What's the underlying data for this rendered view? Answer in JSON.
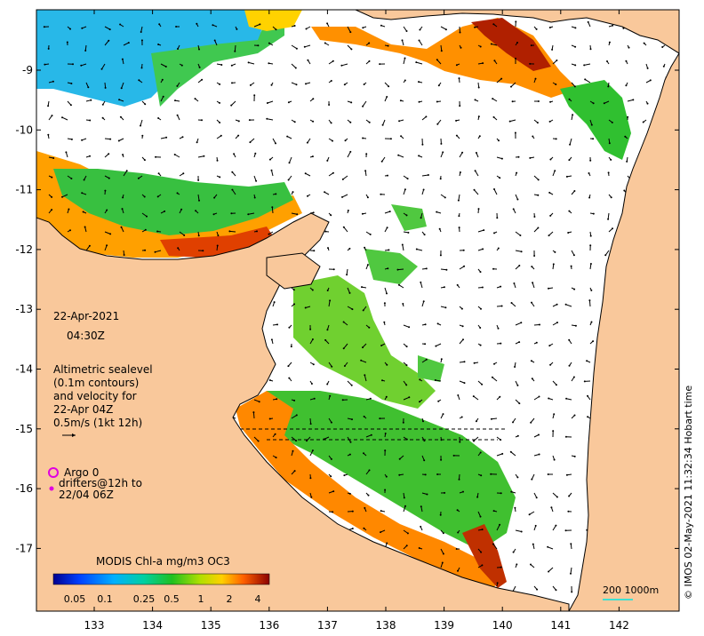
{
  "map": {
    "x_tick_labels": [
      "133",
      "134",
      "135",
      "136",
      "137",
      "138",
      "139",
      "140",
      "141",
      "142"
    ],
    "y_tick_labels": [
      "-9",
      "-10",
      "-11",
      "-12",
      "-13",
      "-14",
      "-15",
      "-16",
      "-17"
    ],
    "date_line": "22-Apr-2021",
    "time_line": "04:30Z",
    "sealevel_lines": [
      "Altimetric sealevel",
      "(0.1m contours)",
      "and velocity for",
      "22-Apr 04Z",
      "0.5m/s (1kt 12h)"
    ],
    "argo_label": "Argo 0",
    "drifters_lines": [
      "drifters@12h to",
      "22/04 06Z"
    ],
    "colorbar_title": "MODIS Chl-a mg/m3 OC3",
    "colorbar_ticks": [
      "0.05",
      "0.1",
      "0.25",
      "0.5",
      "1",
      "2",
      "4"
    ],
    "scale_label": "200  1000m",
    "credit": "© IMOS 02-May-2021 11:32:34 Hobart time",
    "colors": {
      "land": "#f9c89b",
      "ocean": "#ffffff",
      "argo": "#e000e0",
      "scale_line": "#40e0d0"
    }
  }
}
